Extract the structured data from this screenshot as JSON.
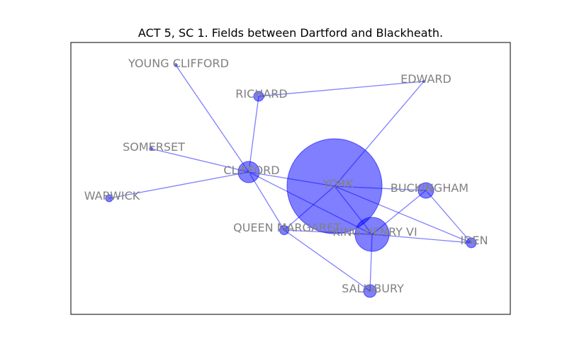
{
  "title": "ACT 5, SC 1. Fields between Dartford and Blackheath.",
  "colors": {
    "node": "#0000ff",
    "label": "#808080",
    "frame": "#000000"
  },
  "nodes": [
    {
      "id": "york",
      "label": "YORK"
    },
    {
      "id": "king-henry-vi",
      "label": "KING HENRY VI"
    },
    {
      "id": "clifford",
      "label": "CLIFFORD"
    },
    {
      "id": "buckingham",
      "label": "BUCKINGHAM"
    },
    {
      "id": "salisbury",
      "label": "SALISBURY"
    },
    {
      "id": "queen-margaret",
      "label": "QUEEN MARGARET"
    },
    {
      "id": "iden",
      "label": "IDEN"
    },
    {
      "id": "richard",
      "label": "RICHARD"
    },
    {
      "id": "warwick",
      "label": "WARWICK"
    },
    {
      "id": "young-clifford",
      "label": "YOUNG CLIFFORD"
    },
    {
      "id": "edward",
      "label": "EDWARD"
    },
    {
      "id": "somerset",
      "label": "SOMERSET"
    }
  ],
  "edges": [
    [
      "york",
      "king-henry-vi"
    ],
    [
      "york",
      "clifford"
    ],
    [
      "york",
      "buckingham"
    ],
    [
      "york",
      "edward"
    ],
    [
      "york",
      "queen-margaret"
    ],
    [
      "york",
      "iden"
    ],
    [
      "king-henry-vi",
      "clifford"
    ],
    [
      "king-henry-vi",
      "buckingham"
    ],
    [
      "king-henry-vi",
      "iden"
    ],
    [
      "king-henry-vi",
      "salisbury"
    ],
    [
      "king-henry-vi",
      "queen-margaret"
    ],
    [
      "clifford",
      "richard"
    ],
    [
      "clifford",
      "young-clifford"
    ],
    [
      "clifford",
      "somerset"
    ],
    [
      "clifford",
      "warwick"
    ],
    [
      "clifford",
      "queen-margaret"
    ],
    [
      "richard",
      "edward"
    ],
    [
      "buckingham",
      "iden"
    ],
    [
      "queen-margaret",
      "salisbury"
    ]
  ]
}
